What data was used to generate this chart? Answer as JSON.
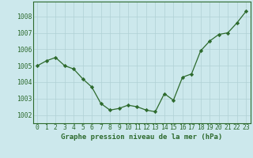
{
  "x": [
    0,
    1,
    2,
    3,
    4,
    5,
    6,
    7,
    8,
    9,
    10,
    11,
    12,
    13,
    14,
    15,
    16,
    17,
    18,
    19,
    20,
    21,
    22,
    23
  ],
  "y": [
    1005.0,
    1005.3,
    1005.5,
    1005.0,
    1004.8,
    1004.2,
    1003.7,
    1002.7,
    1002.3,
    1002.4,
    1002.6,
    1002.5,
    1002.3,
    1002.2,
    1003.3,
    1002.9,
    1004.3,
    1004.5,
    1005.9,
    1006.5,
    1006.9,
    1007.0,
    1007.6,
    1008.3
  ],
  "line_color": "#2d6a2d",
  "marker": "D",
  "marker_size": 2.2,
  "bg_color": "#cce8ec",
  "grid_color": "#b0d0d4",
  "title": "Graphe pression niveau de la mer (hPa)",
  "tick_label_fontsize": 5.8,
  "xlabel_fontsize": 6.5,
  "ylim": [
    1001.5,
    1008.9
  ],
  "yticks": [
    1002,
    1003,
    1004,
    1005,
    1006,
    1007,
    1008
  ],
  "xticks": [
    0,
    1,
    2,
    3,
    4,
    5,
    6,
    7,
    8,
    9,
    10,
    11,
    12,
    13,
    14,
    15,
    16,
    17,
    18,
    19,
    20,
    21,
    22,
    23
  ]
}
